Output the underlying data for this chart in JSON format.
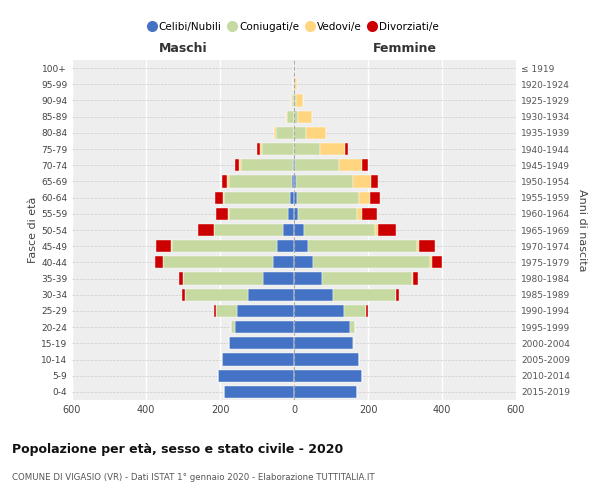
{
  "age_groups": [
    "0-4",
    "5-9",
    "10-14",
    "15-19",
    "20-24",
    "25-29",
    "30-34",
    "35-39",
    "40-44",
    "45-49",
    "50-54",
    "55-59",
    "60-64",
    "65-69",
    "70-74",
    "75-79",
    "80-84",
    "85-89",
    "90-94",
    "95-99",
    "100+"
  ],
  "birth_years": [
    "2015-2019",
    "2010-2014",
    "2005-2009",
    "2000-2004",
    "1995-1999",
    "1990-1994",
    "1985-1989",
    "1980-1984",
    "1975-1979",
    "1970-1974",
    "1965-1969",
    "1960-1964",
    "1955-1959",
    "1950-1954",
    "1945-1949",
    "1940-1944",
    "1935-1939",
    "1930-1934",
    "1925-1929",
    "1920-1924",
    "≤ 1919"
  ],
  "maschi": {
    "celibi": [
      190,
      205,
      195,
      175,
      160,
      155,
      125,
      85,
      58,
      45,
      30,
      15,
      10,
      6,
      2,
      1,
      0,
      0,
      0,
      0,
      0
    ],
    "coniugati": [
      0,
      0,
      0,
      2,
      10,
      55,
      170,
      215,
      295,
      285,
      185,
      160,
      180,
      170,
      140,
      85,
      48,
      18,
      6,
      2,
      0
    ],
    "vedovi": [
      0,
      0,
      0,
      0,
      0,
      0,
      0,
      0,
      2,
      2,
      2,
      3,
      3,
      5,
      6,
      6,
      5,
      4,
      2,
      0,
      0
    ],
    "divorziati": [
      0,
      0,
      0,
      0,
      0,
      5,
      8,
      12,
      20,
      40,
      42,
      32,
      20,
      14,
      12,
      8,
      0,
      0,
      0,
      0,
      0
    ]
  },
  "femmine": {
    "nubili": [
      170,
      185,
      175,
      160,
      150,
      135,
      105,
      75,
      52,
      38,
      28,
      12,
      9,
      5,
      2,
      1,
      0,
      0,
      0,
      0,
      0
    ],
    "coniugate": [
      0,
      0,
      0,
      2,
      15,
      60,
      170,
      245,
      315,
      295,
      190,
      158,
      168,
      155,
      120,
      70,
      32,
      12,
      5,
      2,
      0
    ],
    "vedove": [
      0,
      0,
      0,
      0,
      0,
      0,
      0,
      2,
      5,
      5,
      10,
      15,
      28,
      48,
      62,
      68,
      55,
      36,
      18,
      5,
      2
    ],
    "divorziate": [
      0,
      0,
      0,
      0,
      0,
      5,
      10,
      14,
      28,
      42,
      48,
      38,
      28,
      18,
      16,
      8,
      0,
      0,
      0,
      0,
      0
    ]
  },
  "colors": {
    "celibi": "#4472C4",
    "coniugati": "#c5d9a0",
    "vedovi": "#FFD580",
    "divorziati": "#CC0000"
  },
  "xlim": 600,
  "title": "Popolazione per età, sesso e stato civile - 2020",
  "subtitle": "COMUNE DI VIGASIO (VR) - Dati ISTAT 1° gennaio 2020 - Elaborazione TUTTITALIA.IT",
  "ylabel_left": "Fasce di età",
  "ylabel_right": "Anni di nascita",
  "xlabel_left": "Maschi",
  "xlabel_right": "Femmine",
  "legend_labels": [
    "Celibi/Nubili",
    "Coniugati/e",
    "Vedovi/e",
    "Divorziati/e"
  ],
  "background_color": "#ffffff",
  "plot_bg": "#eeeeee",
  "bar_height": 0.75
}
